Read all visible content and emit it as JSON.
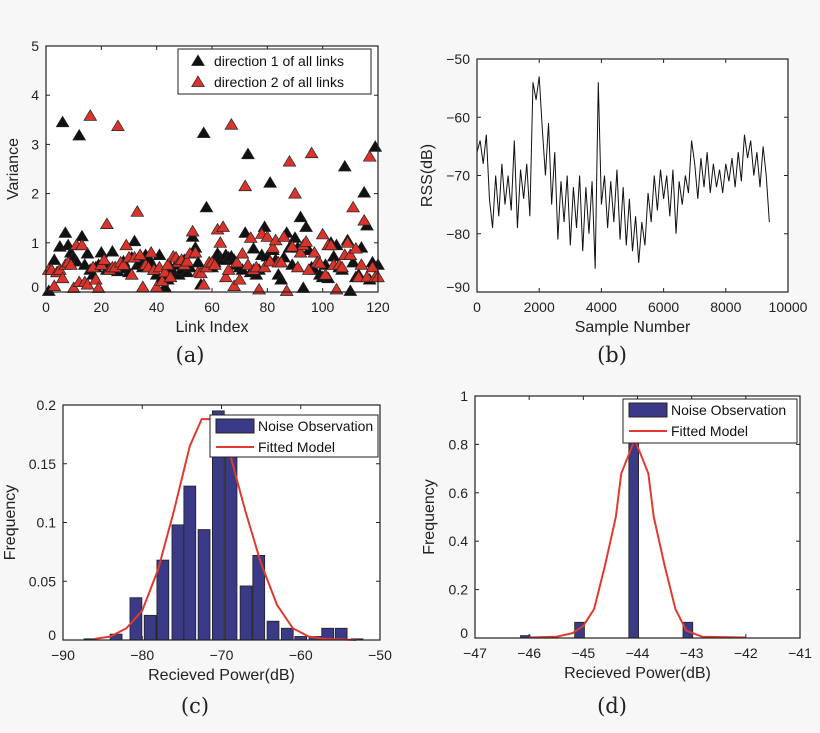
{
  "colors": {
    "black": "#111111",
    "red": "#d9342b",
    "bar": "#3a3a86",
    "line": "#e03a2f"
  },
  "chart_data": [
    {
      "id": "a",
      "caption": "(a)",
      "type": "scatter",
      "xlabel": "Link Index",
      "ylabel": "Variance",
      "xlim": [
        0,
        120
      ],
      "ylim": [
        0,
        5
      ],
      "xticks": [
        0,
        20,
        40,
        60,
        80,
        100,
        120
      ],
      "yticks": [
        0,
        1,
        2,
        3,
        4,
        5
      ],
      "legend": "top-right",
      "series": [
        {
          "name": "direction 1 of all links",
          "marker": "triangle",
          "color": "#111111",
          "y": [
            0.02,
            0.45,
            0.65,
            0.4,
            0.92,
            3.45,
            1.2,
            0.95,
            0.8,
            0.7,
            0.62,
            3.18,
            1.13,
            0.55,
            0.78,
            0.45,
            0.35,
            0.5,
            0.55,
            0.8,
            0.6,
            0.45,
            0.48,
            0.82,
            0.5,
            0.42,
            0.55,
            0.62,
            0.48,
            0.4,
            0.7,
            1.03,
            0.55,
            0.62,
            0.5,
            0.75,
            0.7,
            0.6,
            0.45,
            0.35,
            0.75,
            0.3,
            0.1,
            0.25,
            0.5,
            0.4,
            0.55,
            0.35,
            0.45,
            0.65,
            0.4,
            0.5,
            1.12,
            0.9,
            0.6,
            0.15,
            3.23,
            1.72,
            0.55,
            0.5,
            0.6,
            0.78,
            0.7,
            0.65,
            0.75,
            0.7,
            0.72,
            0.65,
            0.55,
            0.5,
            0.45,
            1.2,
            2.8,
            0.4,
            0.88,
            0.35,
            0.45,
            0.75,
            1.32,
            0.72,
            2.22,
            0.85,
            0.65,
            0.35,
            0.25,
            0.7,
            1.2,
            0.9,
            0.55,
            1.1,
            0.9,
            1.52,
            0.08,
            1.32,
            0.85,
            0.5,
            0.45,
            0.6,
            0.35,
            0.3,
            0.55,
            0.28,
            1.0,
            0.72,
            0.95,
            0.5,
            0.45,
            2.55,
            1.05,
            0.02,
            0.6,
            0.3,
            0.35,
            0.9,
            2.02,
            1.35,
            0.25,
            0.6,
            2.95,
            0.55
          ]
        },
        {
          "name": "direction 2 of all links",
          "marker": "triangle",
          "color": "#d9342b",
          "y": [
            0.45,
            0.45,
            0.12,
            0.4,
            0.45,
            0.28,
            0.55,
            0.6,
            0.55,
            0.08,
            0.95,
            0.2,
            0.95,
            0.2,
            0.15,
            3.58,
            0.5,
            0.25,
            0.08,
            0.55,
            0.65,
            1.38,
            0.45,
            0.5,
            0.5,
            3.37,
            0.6,
            0.55,
            0.95,
            0.7,
            0.35,
            0.7,
            1.63,
            0.75,
            0.1,
            0.55,
            0.5,
            0.8,
            0.45,
            0.1,
            0.5,
            0.22,
            0.4,
            0.55,
            0.3,
            0.72,
            0.7,
            0.6,
            0.65,
            0.55,
            0.62,
            0.78,
            1.23,
            0.8,
            0.4,
            0.38,
            0.15,
            0.5,
            0.6,
            0.6,
            0.55,
            1.27,
            1.0,
            1.32,
            0.3,
            0.45,
            3.4,
            0.12,
            0.6,
            0.25,
            0.78,
            2.15,
            0.55,
            1.1,
            0.45,
            0.5,
            0.05,
            1.18,
            0.5,
            1.12,
            0.62,
            0.9,
            1.05,
            0.6,
            0.6,
            1.12,
            0.02,
            2.65,
            0.92,
            2.0,
            0.5,
            0.8,
            0.95,
            1.02,
            0.45,
            2.82,
            0.8,
            0.6,
            0.58,
            1.17,
            0.35,
            0.95,
            0.95,
            0.55,
            0.05,
            0.55,
            0.5,
            0.75,
            1.0,
            0.75,
            1.72,
            0.88,
            0.3,
            0.55,
            1.45,
            0.3,
            2.75,
            0.5,
            0.3,
            0.3
          ]
        }
      ]
    },
    {
      "id": "b",
      "caption": "(b)",
      "type": "line",
      "xlabel": "Sample Number",
      "ylabel": "RSS(dB)",
      "xlim": [
        0,
        10000
      ],
      "ylim": [
        -90,
        -50
      ],
      "xticks": [
        0,
        2000,
        4000,
        6000,
        8000,
        10000
      ],
      "yticks": [
        -90,
        -80,
        -70,
        -60,
        -50
      ],
      "series": [
        {
          "color": "#111111",
          "x": [
            0,
            100,
            200,
            300,
            400,
            500,
            600,
            700,
            800,
            900,
            1000,
            1100,
            1200,
            1300,
            1400,
            1500,
            1600,
            1700,
            1800,
            1900,
            2000,
            2100,
            2200,
            2300,
            2400,
            2500,
            2600,
            2700,
            2800,
            2900,
            3000,
            3100,
            3200,
            3300,
            3400,
            3500,
            3600,
            3700,
            3800,
            3900,
            4000,
            4100,
            4200,
            4300,
            4400,
            4500,
            4600,
            4700,
            4800,
            4900,
            5000,
            5100,
            5200,
            5300,
            5400,
            5500,
            5600,
            5700,
            5800,
            5900,
            6000,
            6100,
            6200,
            6300,
            6400,
            6500,
            6600,
            6700,
            6800,
            6900,
            7000,
            7100,
            7200,
            7300,
            7400,
            7500,
            7600,
            7700,
            7800,
            7900,
            8000,
            8100,
            8200,
            8300,
            8400,
            8500,
            8600,
            8700,
            8800,
            8900,
            9000,
            9100,
            9200,
            9300,
            9400
          ],
          "y": [
            -66,
            -64,
            -68,
            -63,
            -74,
            -79,
            -70,
            -77,
            -68,
            -75,
            -70,
            -76,
            -64,
            -79,
            -69,
            -74,
            -68,
            -77,
            -54,
            -57,
            -53,
            -62,
            -70,
            -61,
            -75,
            -66,
            -81,
            -71,
            -78,
            -70,
            -82,
            -72,
            -79,
            -70,
            -83,
            -72,
            -80,
            -71,
            -86,
            -54,
            -75,
            -70,
            -79,
            -71,
            -78,
            -69,
            -81,
            -72,
            -82,
            -74,
            -83,
            -77,
            -85,
            -78,
            -82,
            -73,
            -78,
            -70,
            -76,
            -69,
            -74,
            -70,
            -77,
            -69,
            -80,
            -71,
            -75,
            -70,
            -73,
            -64,
            -68,
            -74,
            -67,
            -72,
            -66,
            -73,
            -68,
            -72,
            -69,
            -73,
            -68,
            -71,
            -67,
            -72,
            -66,
            -71,
            -63,
            -67,
            -64,
            -70,
            -66,
            -72,
            -65,
            -70,
            -78
          ]
        }
      ]
    },
    {
      "id": "c",
      "caption": "(c)",
      "type": "bar",
      "xlabel": "Recieved Power(dB)",
      "ylabel": "Frequency",
      "xlim": [
        -90,
        -50
      ],
      "ylim": [
        0,
        0.2
      ],
      "xticks": [
        -90,
        -80,
        -70,
        -60,
        -50
      ],
      "yticks": [
        0,
        0.05,
        0.1,
        0.15,
        0.2
      ],
      "legend": "top-right",
      "bar_width": 1.5,
      "series": [
        {
          "name": "Noise Observation",
          "color": "#3a3a86",
          "x": [
            -86.6,
            -83.3,
            -80.8,
            -79.0,
            -77.4,
            -75.5,
            -74.0,
            -72.2,
            -70.4,
            -68.8,
            -66.9,
            -65.3,
            -63.5,
            -61.7,
            -60.0,
            -58.2,
            -56.6,
            -54.9,
            -52.9
          ],
          "values": [
            0.001,
            0.005,
            0.036,
            0.021,
            0.068,
            0.098,
            0.131,
            0.094,
            0.195,
            0.16,
            0.046,
            0.072,
            0.016,
            0.01,
            0.003,
            0.003,
            0.01,
            0.01,
            0.001
          ]
        },
        {
          "name": "Fitted Model",
          "color": "#e03a2f",
          "type": "line",
          "x": [
            -86,
            -84,
            -82,
            -80,
            -78,
            -76,
            -74,
            -72.5,
            -71,
            -69,
            -67,
            -65,
            -63,
            -61,
            -59,
            -57,
            -55,
            -53
          ],
          "values": [
            0.001,
            0.003,
            0.01,
            0.025,
            0.06,
            0.11,
            0.165,
            0.188,
            0.188,
            0.16,
            0.11,
            0.065,
            0.03,
            0.01,
            0.003,
            0.001,
            0.0005,
            0
          ]
        }
      ]
    },
    {
      "id": "d",
      "caption": "(d)",
      "type": "bar",
      "xlabel": "Recieved Power(dB)",
      "ylabel": "Frequency",
      "xlim": [
        -47,
        -41
      ],
      "ylim": [
        0,
        1
      ],
      "xticks": [
        -47,
        -46,
        -45,
        -44,
        -43,
        -42,
        -41
      ],
      "yticks": [
        0,
        0.2,
        0.4,
        0.6,
        0.8,
        1
      ],
      "legend": "top-right",
      "bar_width": 0.18,
      "series": [
        {
          "name": "Noise Observation",
          "color": "#3a3a86",
          "x": [
            -46.07,
            -45.07,
            -44.07,
            -43.07
          ],
          "values": [
            0.01,
            0.065,
            0.86,
            0.065
          ]
        },
        {
          "name": "Fitted Model",
          "color": "#e03a2f",
          "type": "line",
          "x": [
            -46,
            -45.5,
            -45.2,
            -45,
            -44.8,
            -44.6,
            -44.4,
            -44.3,
            -44.05,
            -43.8,
            -43.7,
            -43.5,
            -43.3,
            -43.1,
            -42.8,
            -42
          ],
          "values": [
            0.002,
            0.005,
            0.02,
            0.05,
            0.12,
            0.3,
            0.5,
            0.68,
            0.82,
            0.68,
            0.5,
            0.3,
            0.12,
            0.03,
            0.005,
            0.002
          ]
        }
      ]
    }
  ]
}
